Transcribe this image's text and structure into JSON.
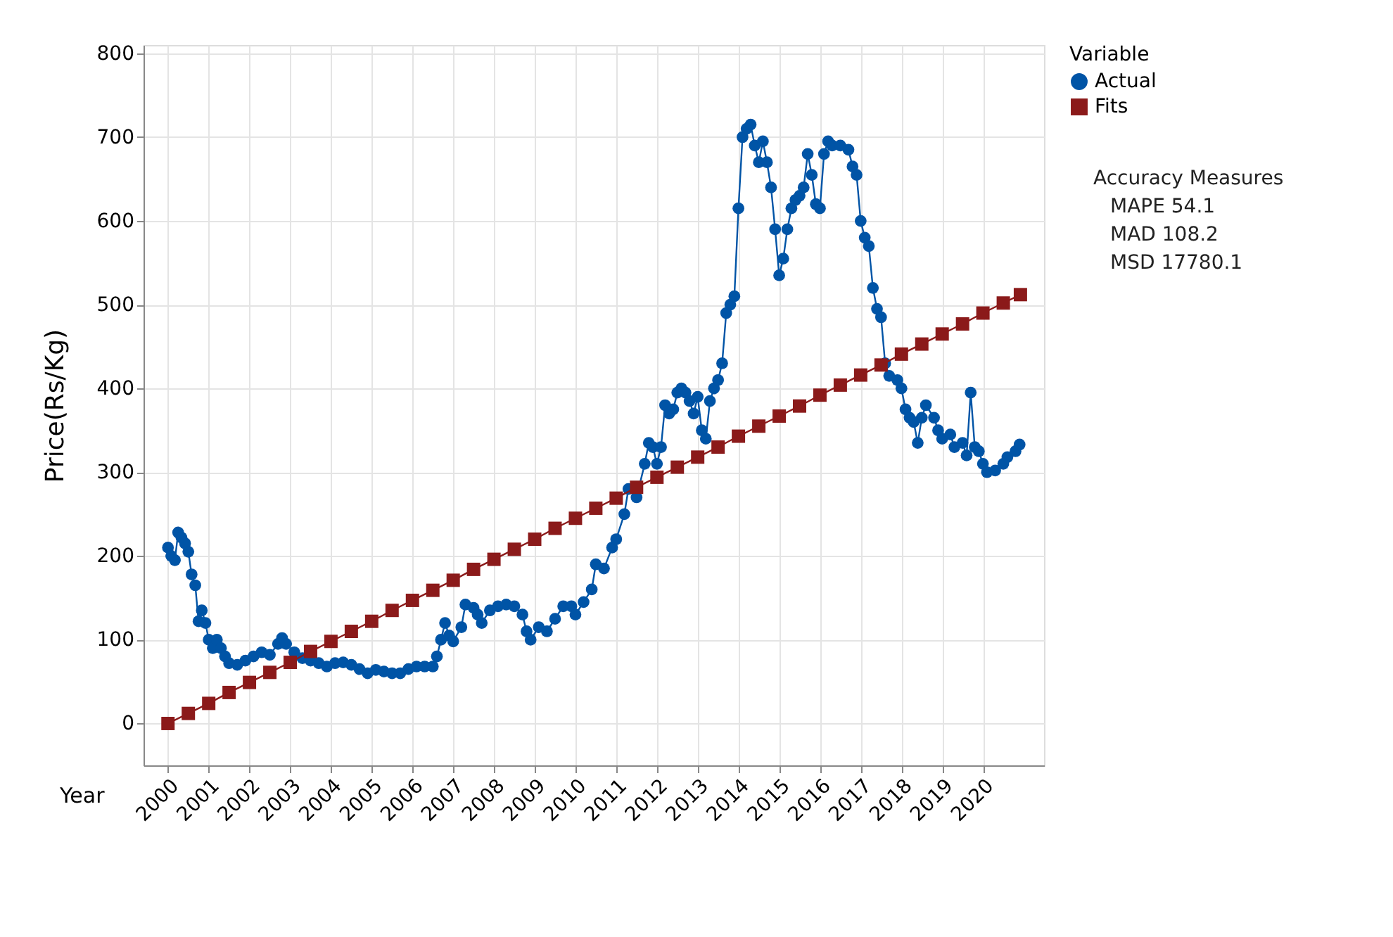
{
  "chart_data": {
    "type": "line",
    "xlabel": "Year",
    "ylabel": "Price(Rs/Kg)",
    "legend_title": "Variable",
    "legend": "top right",
    "grid": true,
    "xlim": [
      1999.4,
      2021.5
    ],
    "xticks": [
      2000,
      2001,
      2002,
      2003,
      2004,
      2005,
      2006,
      2007,
      2008,
      2009,
      2010,
      2011,
      2012,
      2013,
      2014,
      2015,
      2016,
      2017,
      2018,
      2019,
      2020
    ],
    "ylim": [
      -50,
      810
    ],
    "yticks": [
      0,
      100,
      200,
      300,
      400,
      500,
      600,
      700,
      800
    ],
    "annotations": [
      "Accuracy Measures",
      "MAPE 54.1",
      "MAD 108.2",
      "MSD 17780.1"
    ],
    "series": [
      {
        "name": "Actual",
        "color": "#0054a6",
        "marker": "circle",
        "line_style": "solid",
        "x": [
          2000.0,
          2000.08,
          2000.17,
          2000.25,
          2000.33,
          2000.42,
          2000.5,
          2000.58,
          2000.67,
          2000.75,
          2000.83,
          2000.92,
          2001.0,
          2001.1,
          2001.2,
          2001.3,
          2001.4,
          2001.5,
          2001.7,
          2001.9,
          2002.1,
          2002.3,
          2002.5,
          2002.7,
          2002.8,
          2002.9,
          2003.1,
          2003.3,
          2003.5,
          2003.7,
          2003.9,
          2004.1,
          2004.3,
          2004.5,
          2004.7,
          2004.9,
          2005.1,
          2005.3,
          2005.5,
          2005.7,
          2005.9,
          2006.1,
          2006.3,
          2006.5,
          2006.6,
          2006.7,
          2006.8,
          2006.9,
          2007.0,
          2007.2,
          2007.3,
          2007.5,
          2007.6,
          2007.7,
          2007.9,
          2008.1,
          2008.3,
          2008.5,
          2008.7,
          2008.8,
          2008.9,
          2009.1,
          2009.3,
          2009.5,
          2009.7,
          2009.9,
          2010.0,
          2010.2,
          2010.4,
          2010.5,
          2010.7,
          2010.9,
          2011.0,
          2011.2,
          2011.3,
          2011.5,
          2011.7,
          2011.8,
          2011.9,
          2012.0,
          2012.1,
          2012.2,
          2012.3,
          2012.4,
          2012.5,
          2012.6,
          2012.7,
          2012.8,
          2012.9,
          2013.0,
          2013.1,
          2013.2,
          2013.3,
          2013.4,
          2013.5,
          2013.6,
          2013.7,
          2013.8,
          2013.9,
          2014.0,
          2014.1,
          2014.2,
          2014.3,
          2014.4,
          2014.5,
          2014.6,
          2014.7,
          2014.8,
          2014.9,
          2015.0,
          2015.1,
          2015.2,
          2015.3,
          2015.4,
          2015.5,
          2015.6,
          2015.7,
          2015.8,
          2015.9,
          2016.0,
          2016.1,
          2016.2,
          2016.3,
          2016.5,
          2016.7,
          2016.8,
          2016.9,
          2017.0,
          2017.1,
          2017.2,
          2017.3,
          2017.4,
          2017.5,
          2017.6,
          2017.7,
          2017.9,
          2018.0,
          2018.1,
          2018.2,
          2018.3,
          2018.4,
          2018.5,
          2018.6,
          2018.8,
          2018.9,
          2019.0,
          2019.2,
          2019.3,
          2019.5,
          2019.6,
          2019.7,
          2019.8,
          2019.9,
          2020.0,
          2020.1,
          2020.3,
          2020.5,
          2020.6,
          2020.8,
          2020.9
        ],
        "values": [
          210,
          200,
          195,
          228,
          222,
          215,
          205,
          178,
          165,
          122,
          135,
          120,
          100,
          90,
          100,
          90,
          80,
          72,
          70,
          75,
          80,
          85,
          82,
          95,
          102,
          95,
          85,
          78,
          75,
          72,
          68,
          72,
          73,
          70,
          65,
          60,
          64,
          62,
          60,
          60,
          65,
          68,
          68,
          68,
          80,
          100,
          120,
          105,
          98,
          115,
          142,
          138,
          130,
          120,
          135,
          140,
          142,
          140,
          130,
          110,
          100,
          115,
          110,
          125,
          140,
          140,
          130,
          145,
          160,
          190,
          185,
          210,
          220,
          250,
          280,
          270,
          310,
          335,
          330,
          310,
          330,
          380,
          370,
          375,
          395,
          400,
          395,
          385,
          370,
          390,
          350,
          340,
          385,
          400,
          410,
          430,
          490,
          500,
          510,
          615,
          700,
          710,
          715,
          690,
          670,
          695,
          670,
          640,
          590,
          535,
          555,
          590,
          615,
          625,
          630,
          640,
          680,
          655,
          620,
          615,
          680,
          695,
          690,
          690,
          685,
          665,
          655,
          600,
          580,
          570,
          520,
          495,
          485,
          430,
          415,
          410,
          400,
          375,
          365,
          360,
          335,
          365,
          380,
          365,
          350,
          340,
          345,
          330,
          335,
          320,
          395,
          330,
          325,
          310,
          300,
          302,
          310,
          318,
          325,
          333
        ]
      },
      {
        "name": "Fits",
        "color": "#8b1a1a",
        "marker": "square",
        "line_style": "solid",
        "x": [
          2000.0,
          2000.5,
          2001.0,
          2001.5,
          2002.0,
          2002.5,
          2003.0,
          2003.5,
          2004.0,
          2004.5,
          2005.0,
          2005.5,
          2006.0,
          2006.5,
          2007.0,
          2007.5,
          2008.0,
          2008.5,
          2009.0,
          2009.5,
          2010.0,
          2010.5,
          2011.0,
          2011.5,
          2012.0,
          2012.5,
          2013.0,
          2013.5,
          2014.0,
          2014.5,
          2015.0,
          2015.5,
          2016.0,
          2016.5,
          2017.0,
          2017.5,
          2018.0,
          2018.5,
          2019.0,
          2019.5,
          2020.0,
          2020.5,
          2020.92
        ],
        "values": [
          0,
          12,
          24,
          37,
          49,
          61,
          73,
          86,
          98,
          110,
          122,
          135,
          147,
          159,
          171,
          184,
          196,
          208,
          220,
          233,
          245,
          257,
          269,
          282,
          294,
          306,
          318,
          330,
          343,
          355,
          367,
          379,
          392,
          404,
          416,
          428,
          441,
          453,
          465,
          477,
          490,
          502,
          512
        ]
      }
    ]
  }
}
